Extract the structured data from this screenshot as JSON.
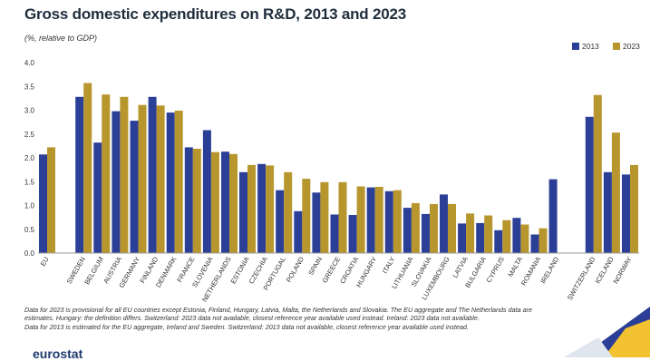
{
  "header": {
    "title": "Gross domestic expenditures on R&D, 2013 and 2023",
    "subtitle": "(%, relative to GDP)"
  },
  "colors": {
    "s2013": "#2c3f97",
    "s2023": "#b8962e",
    "axis": "#999999",
    "grid": "#dddddd",
    "text": "#333333"
  },
  "notes": [
    "Data for 2023 is provisional for all EU countries except Estonia, Finland, Hungary, Latvia, Malta, the Netherlands and Slovakia. The EU aggregate and The Netherlands data are",
    "estimates. Hungary: the definition differs. Switzerland: 2023 data not available, closest reference year available used instead. Ireland: 2023 data not available.",
    "Data for 2013 is estimated for the EU aggregate, Ireland and Sweden. Switzerland: 2013 data not available, closest reference year available used instead."
  ],
  "footer": {
    "logo": "eurostat"
  },
  "chart_data": {
    "type": "bar",
    "title": "Gross domestic expenditures on R&D, 2013 and 2023",
    "subtitle": "(%, relative to GDP)",
    "ylim": [
      0,
      4
    ],
    "yticks": [
      "0.0",
      "0.5",
      "1.0",
      "1.5",
      "2.0",
      "2.5",
      "3.0",
      "3.5",
      "4.0"
    ],
    "grid": false,
    "legend": "top-right",
    "categories": [
      "EU",
      "SWEDEN",
      "BELGIUM",
      "AUSTRIA",
      "GERMANY",
      "FINLAND",
      "DENMARK",
      "FRANCE",
      "SLOVENIA",
      "NETHERLANDS",
      "ESTONIA",
      "CZECHIA",
      "PORTUGAL",
      "POLAND",
      "SPAIN",
      "GREECE",
      "CROATIA",
      "HUNGARY",
      "ITALY",
      "LITHUANIA",
      "SLOVAKIA",
      "LUXEMBOURG",
      "LATVIA",
      "BULGARIA",
      "CYPRUS",
      "MALTA",
      "ROMANIA",
      "IRELAND",
      "SWITZERLAND",
      "ICELAND",
      "NORWAY"
    ],
    "series": [
      {
        "name": "2013",
        "values": [
          2.07,
          3.28,
          2.32,
          2.98,
          2.78,
          3.28,
          2.95,
          2.22,
          2.58,
          2.13,
          1.7,
          1.87,
          1.32,
          0.88,
          1.27,
          0.81,
          0.8,
          1.38,
          1.3,
          0.95,
          0.82,
          1.23,
          0.62,
          0.63,
          0.48,
          0.74,
          0.39,
          1.55,
          2.86,
          1.7,
          1.65
        ]
      },
      {
        "name": "2023",
        "values": [
          2.22,
          3.57,
          3.33,
          3.28,
          3.11,
          3.1,
          2.99,
          2.19,
          2.12,
          2.08,
          1.85,
          1.84,
          1.7,
          1.56,
          1.49,
          1.49,
          1.4,
          1.39,
          1.32,
          1.05,
          1.03,
          1.03,
          0.83,
          0.79,
          0.69,
          0.6,
          0.52,
          null,
          3.32,
          2.53,
          1.85
        ]
      }
    ]
  }
}
